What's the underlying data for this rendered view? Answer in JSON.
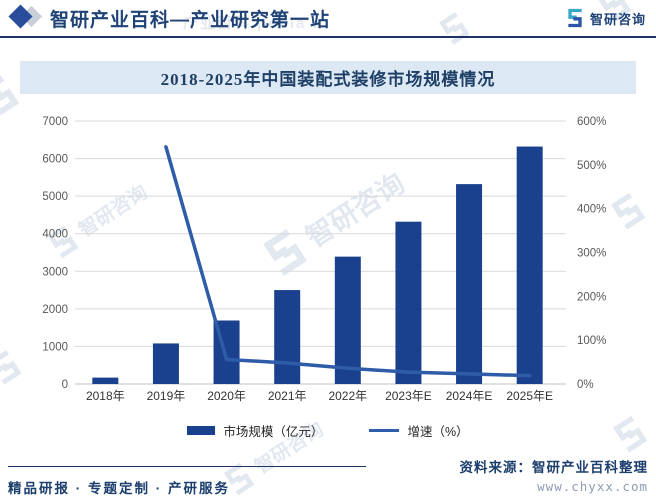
{
  "header": {
    "brand_title": "智研产业百科—产业研究第一站",
    "logo_text": "智研咨询"
  },
  "chart_data": {
    "type": "bar",
    "title": "2018-2025年中国装配式装修市场规模情况",
    "categories": [
      "2018年",
      "2019年",
      "2020年",
      "2021年",
      "2022年",
      "2023年E",
      "2024年E",
      "2025年E"
    ],
    "series": [
      {
        "name": "市场规模（亿元）",
        "type": "bar",
        "axis": "left",
        "values": [
          170,
          1080,
          1690,
          2500,
          3390,
          4320,
          5320,
          6320
        ]
      },
      {
        "name": "增速（%）",
        "type": "line",
        "axis": "right",
        "values": [
          null,
          541,
          56,
          48,
          36,
          27,
          23,
          19
        ]
      }
    ],
    "left_axis": {
      "min": 0,
      "max": 7000,
      "step": 1000,
      "tick_labels": [
        "0",
        "1000",
        "2000",
        "3000",
        "4000",
        "5000",
        "6000",
        "7000"
      ]
    },
    "right_axis": {
      "min": 0,
      "max": 600,
      "step": 100,
      "tick_labels": [
        "0%",
        "100%",
        "200%",
        "300%",
        "400%",
        "500%",
        "600%"
      ]
    },
    "grid": true,
    "legend_position": "bottom"
  },
  "footer": {
    "services": "精品研报 · 专题定制 · 产研服务",
    "source": "资料来源：智研产业百科整理",
    "website": "www.chyxx.com"
  },
  "watermark_text": "智研咨询",
  "watermark_ghost_text": "产业百科 pedia a",
  "colors": {
    "bar": "#1a418e",
    "line": "#2e5ca9",
    "grid": "#d9d9d9",
    "axis": "#c0c0c0",
    "navy": "#1c3463",
    "watermark": "#b7c7dc"
  }
}
